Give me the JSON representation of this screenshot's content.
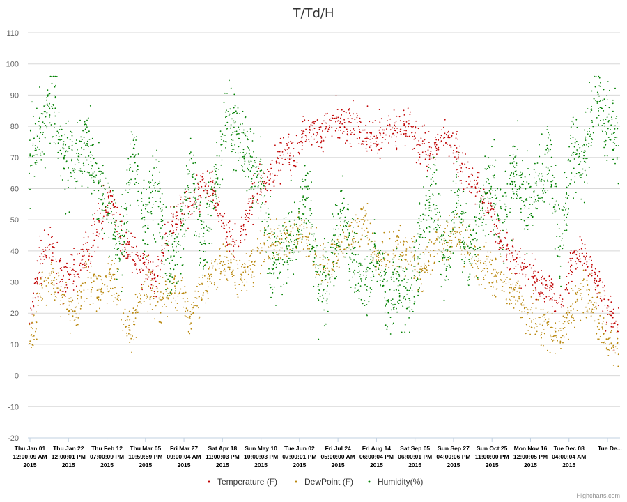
{
  "credit": "Highcharts.com",
  "chart_data": {
    "type": "scatter",
    "title": "T/Td/H",
    "xlabel": "",
    "ylabel": "",
    "ylim": [
      -20,
      110
    ],
    "yticks": [
      -20,
      -10,
      0,
      10,
      20,
      30,
      40,
      50,
      60,
      70,
      80,
      90,
      100,
      110
    ],
    "grid": true,
    "legend_position": "bottom-center",
    "x_tick_labels": [
      {
        "line1": "Thu Jan 01",
        "line2": "12:00:09 AM",
        "line3": "2015"
      },
      {
        "line1": "Thu Jan 22",
        "line2": "12:00:01 PM",
        "line3": "2015"
      },
      {
        "line1": "Thu Feb 12",
        "line2": "07:00:09 PM",
        "line3": "2015"
      },
      {
        "line1": "Thu Mar 05",
        "line2": "10:59:59 PM",
        "line3": "2015"
      },
      {
        "line1": "Fri Mar 27",
        "line2": "09:00:04 AM",
        "line3": "2015"
      },
      {
        "line1": "Sat Apr 18",
        "line2": "11:00:03 PM",
        "line3": "2015"
      },
      {
        "line1": "Sun May 10",
        "line2": "10:00:03 PM",
        "line3": "2015"
      },
      {
        "line1": "Tue Jun 02",
        "line2": "07:00:01 PM",
        "line3": "2015"
      },
      {
        "line1": "Fri Jul 24",
        "line2": "05:00:00 AM",
        "line3": "2015"
      },
      {
        "line1": "Fri Aug 14",
        "line2": "06:00:04 PM",
        "line3": "2015"
      },
      {
        "line1": "Sat Sep 05",
        "line2": "06:00:01 PM",
        "line3": "2015"
      },
      {
        "line1": "Sun Sep 27",
        "line2": "04:00:06 PM",
        "line3": "2015"
      },
      {
        "line1": "Sun Oct 25",
        "line2": "11:00:00 PM",
        "line3": "2015"
      },
      {
        "line1": "Mon Nov 16",
        "line2": "12:00:05 PM",
        "line3": "2015"
      },
      {
        "line1": "Tue Dec 08",
        "line2": "04:00:04 AM",
        "line3": "2015"
      },
      {
        "line1": "Tue De...",
        "line2": "",
        "line3": ""
      }
    ],
    "series": [
      {
        "name": "Temperature (F)",
        "color": "#c00000",
        "values": [
          16,
          38,
          40,
          30,
          34,
          40,
          48,
          58,
          42,
          40,
          34,
          30,
          46,
          52,
          56,
          62,
          58,
          46,
          40,
          55,
          60,
          65,
          72,
          70,
          80,
          78,
          80,
          82,
          80,
          77,
          75,
          78,
          80,
          80,
          72,
          70,
          78,
          72,
          62,
          60,
          52,
          42,
          38,
          34,
          30,
          28,
          22,
          38,
          40,
          30,
          20,
          15
        ]
      },
      {
        "name": "DewPoint (F)",
        "color": "#b8860b",
        "values": [
          8,
          28,
          32,
          25,
          20,
          34,
          26,
          32,
          20,
          15,
          30,
          24,
          26,
          28,
          18,
          28,
          34,
          38,
          30,
          35,
          40,
          44,
          42,
          48,
          44,
          38,
          32,
          42,
          45,
          50,
          38,
          40,
          42,
          38,
          32,
          40,
          44,
          46,
          40,
          36,
          34,
          30,
          26,
          20,
          18,
          14,
          12,
          22,
          28,
          20,
          12,
          8
        ]
      },
      {
        "name": "Humidity(%)",
        "color": "#008000",
        "values": [
          68,
          78,
          88,
          70,
          68,
          76,
          62,
          50,
          40,
          75,
          48,
          62,
          35,
          40,
          68,
          40,
          58,
          82,
          78,
          68,
          66,
          34,
          42,
          44,
          60,
          28,
          32,
          55,
          38,
          28,
          40,
          24,
          30,
          22,
          50,
          60,
          35,
          60,
          34,
          52,
          62,
          48,
          68,
          55,
          60,
          70,
          40,
          75,
          68,
          88,
          80,
          76
        ]
      }
    ]
  }
}
